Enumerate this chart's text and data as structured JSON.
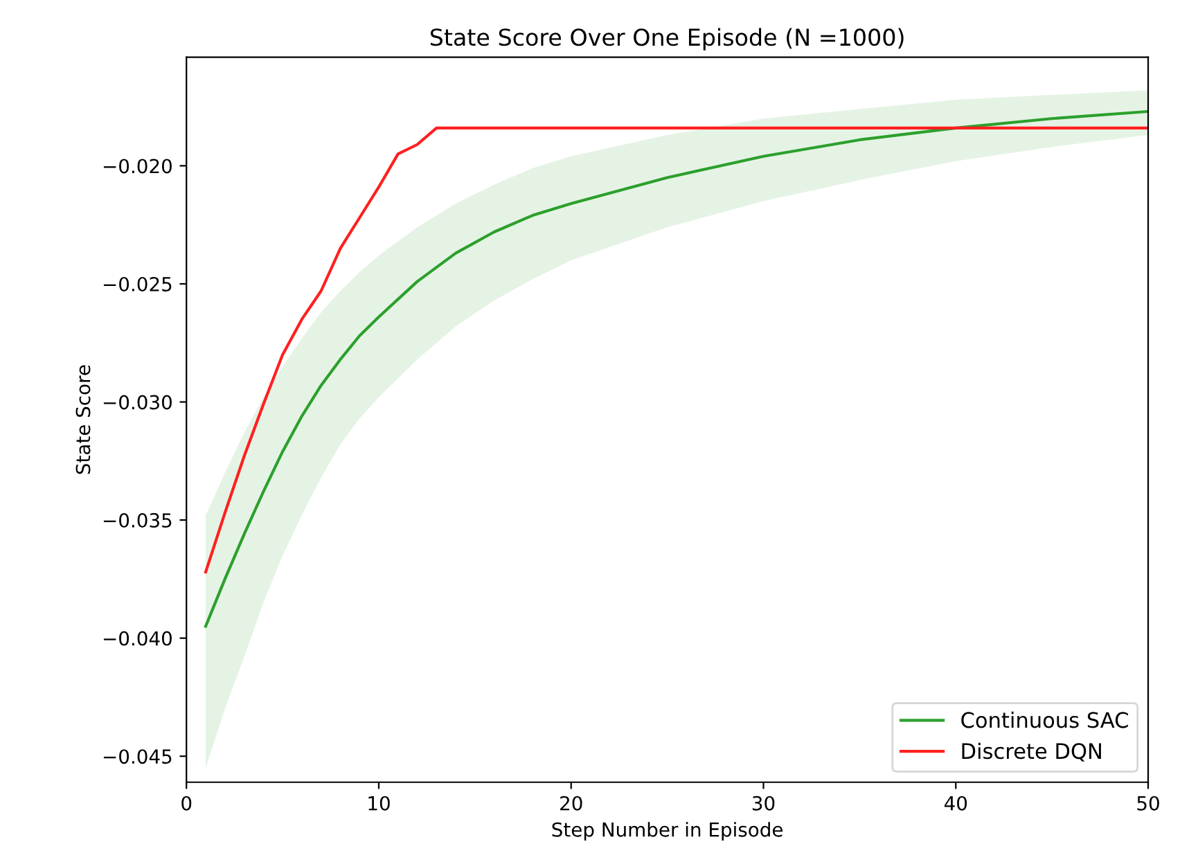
{
  "chart_data": {
    "type": "line",
    "title": "State Score Over One Episode (N =1000)",
    "xlabel": "Step Number in Episode",
    "ylabel": "State Score",
    "xlim": [
      0,
      50
    ],
    "xticks": [
      0,
      10,
      20,
      30,
      40,
      50
    ],
    "ylim": [
      -0.0461,
      -0.0154
    ],
    "yticks": [
      {
        "value": -0.045,
        "label": "−0.045"
      },
      {
        "value": -0.04,
        "label": "−0.040"
      },
      {
        "value": -0.035,
        "label": "−0.035"
      },
      {
        "value": -0.03,
        "label": "−0.030"
      },
      {
        "value": -0.025,
        "label": "−0.025"
      },
      {
        "value": -0.02,
        "label": "−0.020"
      }
    ],
    "grid": false,
    "legend": "lower right",
    "series": [
      {
        "name": "Continuous SAC",
        "color": "#2ca02c",
        "x": [
          1,
          2,
          3,
          4,
          5,
          6,
          7,
          8,
          9,
          10,
          12,
          14,
          16,
          18,
          20,
          25,
          30,
          35,
          40,
          45,
          50
        ],
        "values": [
          -0.0395,
          -0.0375,
          -0.0356,
          -0.0338,
          -0.0321,
          -0.0306,
          -0.0293,
          -0.0282,
          -0.0272,
          -0.0264,
          -0.0249,
          -0.0237,
          -0.0228,
          -0.0221,
          -0.0216,
          -0.0205,
          -0.0196,
          -0.0189,
          -0.0184,
          -0.018,
          -0.0177
        ],
        "upper": [
          -0.0348,
          -0.033,
          -0.0313,
          -0.0298,
          -0.0285,
          -0.0273,
          -0.0262,
          -0.0253,
          -0.0245,
          -0.0238,
          -0.0226,
          -0.0216,
          -0.0208,
          -0.0201,
          -0.0196,
          -0.0187,
          -0.018,
          -0.0176,
          -0.0172,
          -0.017,
          -0.0168
        ],
        "lower": [
          -0.0455,
          -0.043,
          -0.0408,
          -0.0385,
          -0.0365,
          -0.0348,
          -0.0332,
          -0.0318,
          -0.0307,
          -0.0298,
          -0.0282,
          -0.0268,
          -0.0257,
          -0.0248,
          -0.024,
          -0.0226,
          -0.0215,
          -0.0206,
          -0.0198,
          -0.0192,
          -0.0187
        ]
      },
      {
        "name": "Discrete DQN",
        "color": "#ff2020",
        "x": [
          1,
          2,
          3,
          4,
          5,
          6,
          7,
          8,
          9,
          10,
          11,
          12,
          13,
          20,
          30,
          40,
          50
        ],
        "values": [
          -0.0372,
          -0.0347,
          -0.0323,
          -0.0301,
          -0.028,
          -0.0265,
          -0.0253,
          -0.0235,
          -0.0222,
          -0.0209,
          -0.0195,
          -0.0191,
          -0.0184,
          -0.0184,
          -0.0184,
          -0.0184,
          -0.0184
        ]
      }
    ]
  }
}
